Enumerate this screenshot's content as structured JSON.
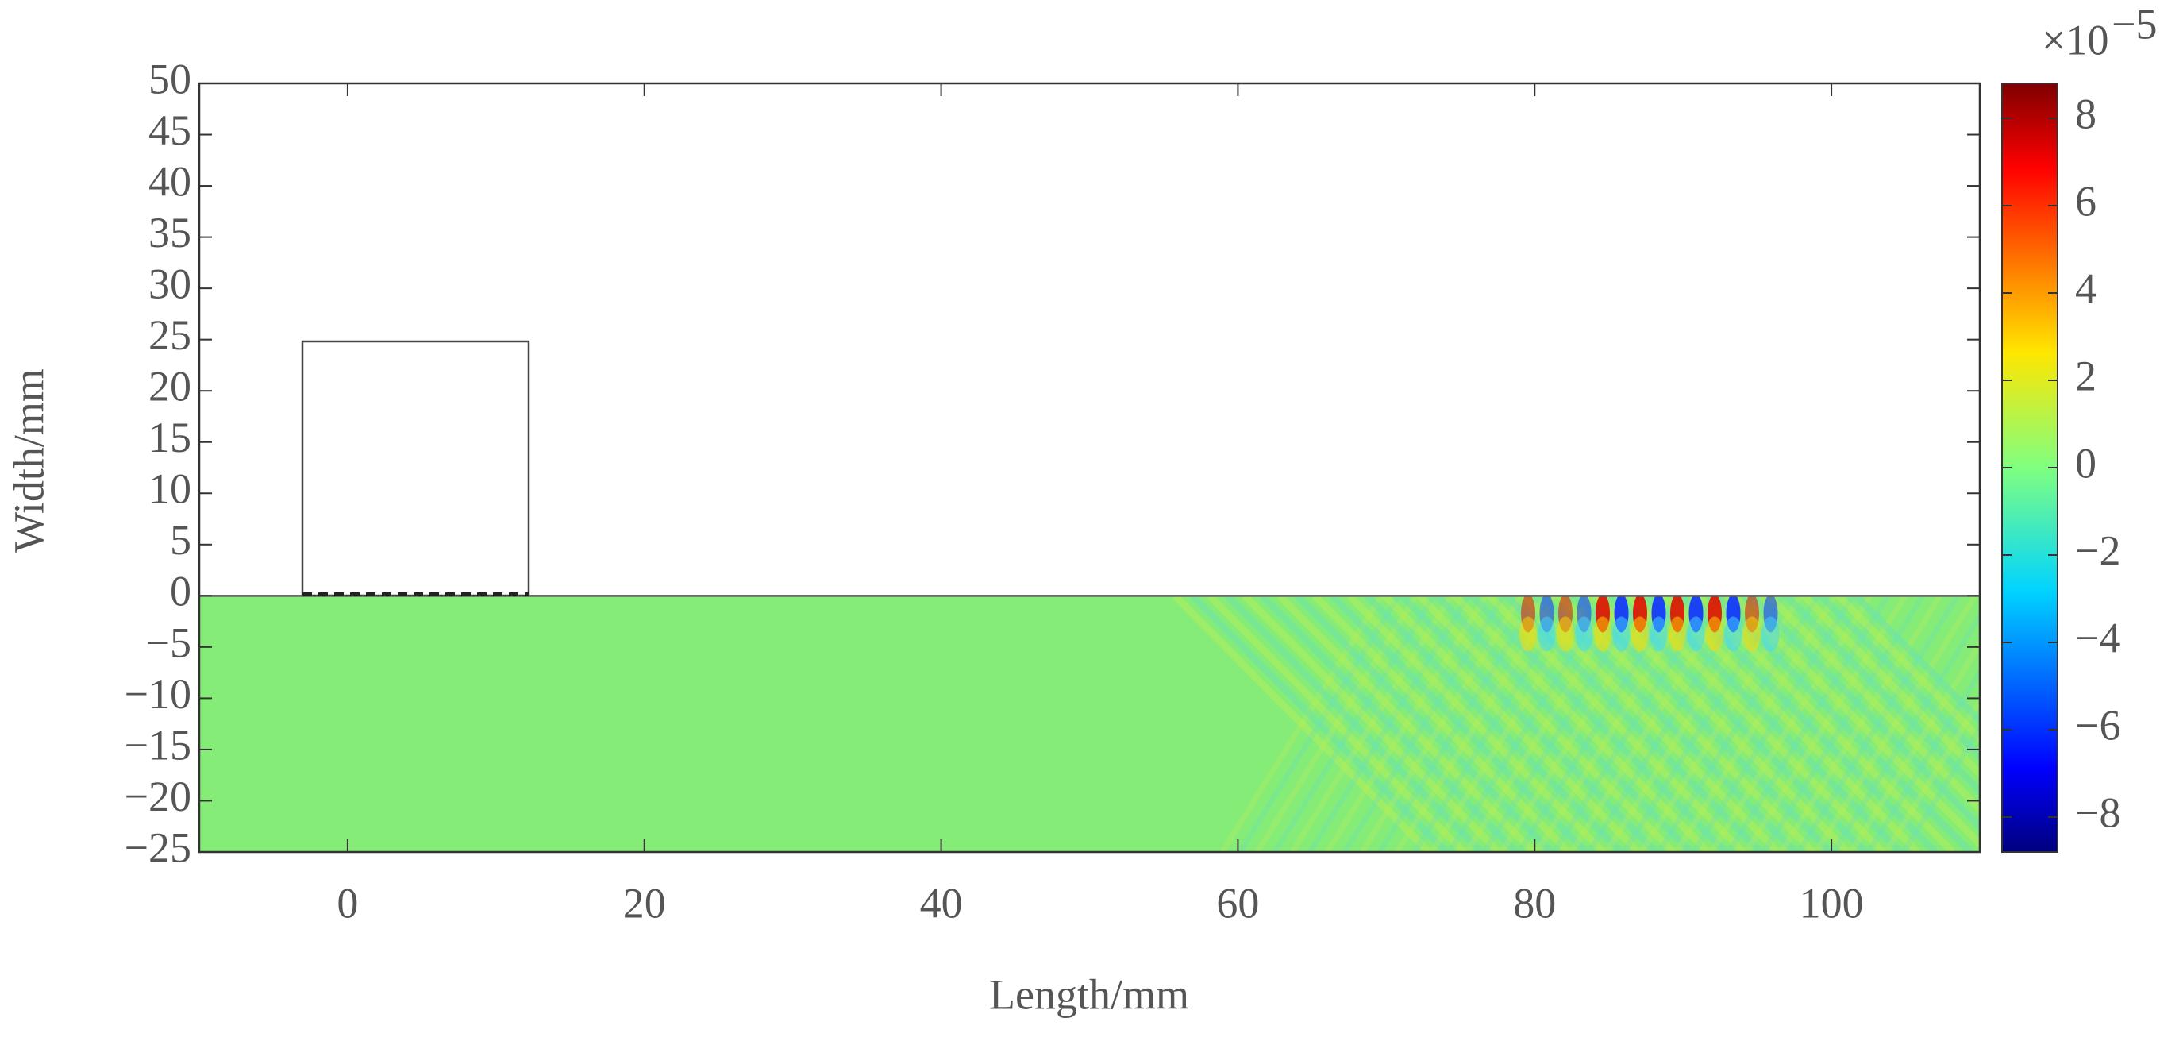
{
  "chart_data": {
    "type": "heatmap",
    "xlabel": "Length/mm",
    "ylabel": "Width/mm",
    "xlim": [
      -10,
      110
    ],
    "ylim": [
      -25,
      50
    ],
    "xticks": [
      0,
      20,
      40,
      60,
      80,
      100
    ],
    "yticks": [
      50,
      45,
      40,
      35,
      30,
      25,
      20,
      15,
      10,
      5,
      0,
      {
        "value": -5,
        "label": "−5"
      },
      {
        "value": -10,
        "label": "−10"
      },
      {
        "value": -15,
        "label": "−15"
      },
      {
        "value": -20,
        "label": "−20"
      },
      {
        "value": -25,
        "label": "−25"
      }
    ],
    "colorbar": {
      "colormap": "jet",
      "clim": [
        -8.8,
        8.8
      ],
      "ticks": [
        {
          "value": -8,
          "label": "−8"
        },
        {
          "value": -6,
          "label": "−6"
        },
        {
          "value": -4,
          "label": "−4"
        },
        {
          "value": -2,
          "label": "−2"
        },
        0,
        2,
        4,
        6,
        8
      ],
      "multiplier": "×10",
      "exponent": "−5"
    }
  }
}
